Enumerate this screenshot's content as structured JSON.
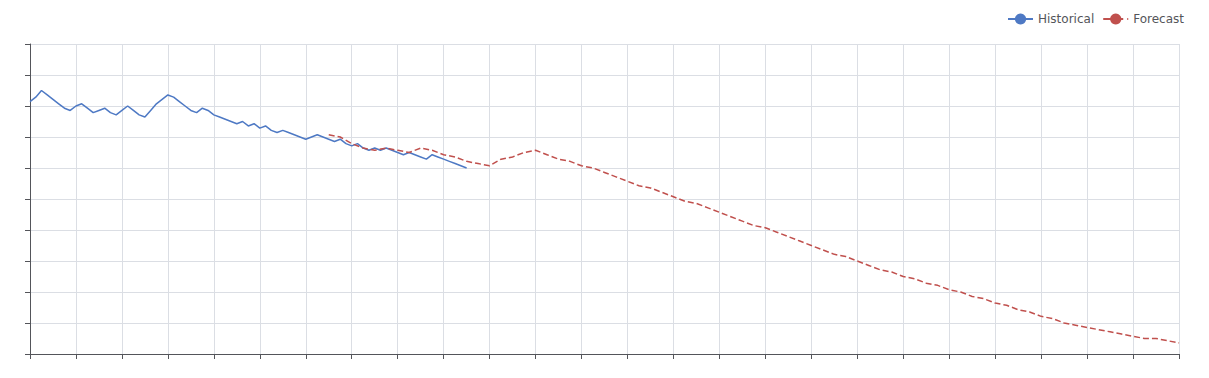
{
  "chart_data": {
    "type": "line",
    "series": [
      {
        "name": "Historical",
        "color": "#4e79c4",
        "line_style": "solid",
        "x": [
          0,
          0.5,
          1,
          1.5,
          2,
          2.5,
          3,
          3.5,
          4,
          4.5,
          5,
          5.5,
          6,
          6.5,
          7,
          7.5,
          8,
          8.5,
          9,
          9.5,
          10,
          10.5,
          11,
          11.5,
          12,
          12.5,
          13,
          13.5,
          14,
          14.5,
          15,
          15.5,
          16,
          16.5,
          17,
          17.5,
          18,
          18.5,
          19,
          19.5,
          20,
          20.5,
          21,
          21.5,
          22,
          22.5,
          23,
          23.5,
          24,
          24.5,
          25,
          25.5,
          26,
          26.5,
          27,
          27.5,
          28,
          28.5,
          29,
          29.5,
          30,
          30.5,
          31,
          31.5,
          32,
          32.5,
          33,
          33.5,
          34,
          34.5,
          35,
          35.5,
          36,
          36.5,
          37,
          37.5,
          38
        ],
        "values": [
          11.4,
          11.6,
          11.9,
          11.7,
          11.5,
          11.3,
          11.1,
          11.0,
          11.2,
          11.3,
          11.1,
          10.9,
          11.0,
          11.1,
          10.9,
          10.8,
          11.0,
          11.2,
          11.0,
          10.8,
          10.7,
          11.0,
          11.3,
          11.5,
          11.7,
          11.6,
          11.4,
          11.2,
          11.0,
          10.9,
          11.1,
          11.0,
          10.8,
          10.7,
          10.6,
          10.5,
          10.4,
          10.5,
          10.3,
          10.4,
          10.2,
          10.3,
          10.1,
          10.0,
          10.1,
          10.0,
          9.9,
          9.8,
          9.7,
          9.8,
          9.9,
          9.8,
          9.7,
          9.6,
          9.7,
          9.5,
          9.4,
          9.5,
          9.3,
          9.2,
          9.3,
          9.2,
          9.3,
          9.2,
          9.1,
          9.0,
          9.1,
          9.0,
          8.9,
          8.8,
          9.0,
          8.9,
          8.8,
          8.7,
          8.6,
          8.5,
          8.4
        ]
      },
      {
        "name": "Forecast",
        "color": "#c0504d",
        "line_style": "dashed",
        "x": [
          26,
          27,
          28,
          29,
          30,
          31,
          32,
          33,
          34,
          35,
          36,
          37,
          38,
          39,
          40,
          41,
          42,
          43,
          44,
          45,
          46,
          47,
          48,
          49,
          50,
          51,
          52,
          53,
          54,
          55,
          56,
          57,
          58,
          59,
          60,
          61,
          62,
          63,
          64,
          65,
          66,
          67,
          68,
          69,
          70,
          71,
          72,
          73,
          74,
          75,
          76,
          77,
          78,
          79,
          80,
          81,
          82,
          83,
          84,
          85,
          86,
          87,
          88,
          89,
          90,
          91,
          92,
          93,
          94,
          95,
          96,
          97,
          98,
          99,
          100
        ],
        "values": [
          9.9,
          9.8,
          9.5,
          9.3,
          9.2,
          9.3,
          9.2,
          9.1,
          9.3,
          9.2,
          9.0,
          8.9,
          8.7,
          8.6,
          8.5,
          8.8,
          8.9,
          9.1,
          9.2,
          9.0,
          8.8,
          8.7,
          8.5,
          8.4,
          8.2,
          8.0,
          7.8,
          7.6,
          7.5,
          7.3,
          7.1,
          6.9,
          6.8,
          6.6,
          6.4,
          6.2,
          6.0,
          5.8,
          5.7,
          5.5,
          5.3,
          5.1,
          4.9,
          4.7,
          4.5,
          4.4,
          4.2,
          4.0,
          3.8,
          3.7,
          3.5,
          3.4,
          3.2,
          3.1,
          2.9,
          2.8,
          2.6,
          2.5,
          2.3,
          2.2,
          2.0,
          1.9,
          1.7,
          1.6,
          1.4,
          1.3,
          1.2,
          1.1,
          1.0,
          0.9,
          0.8,
          0.7,
          0.7,
          0.6,
          0.5
        ]
      }
    ],
    "xlim": [
      0,
      100
    ],
    "xticks": [
      0,
      4,
      8,
      12,
      16,
      20,
      24,
      28,
      32,
      36,
      40,
      44,
      48,
      52,
      56,
      60,
      64,
      68,
      72,
      76,
      80,
      84,
      88,
      92,
      96,
      100
    ],
    "ylim": [
      0,
      14
    ],
    "yticks": [
      0,
      1.4,
      2.8,
      4.2,
      5.6,
      7,
      8.4,
      9.8,
      11.2,
      12.6,
      14
    ],
    "tick_labels": false,
    "grid": true,
    "legend": "upper right"
  }
}
